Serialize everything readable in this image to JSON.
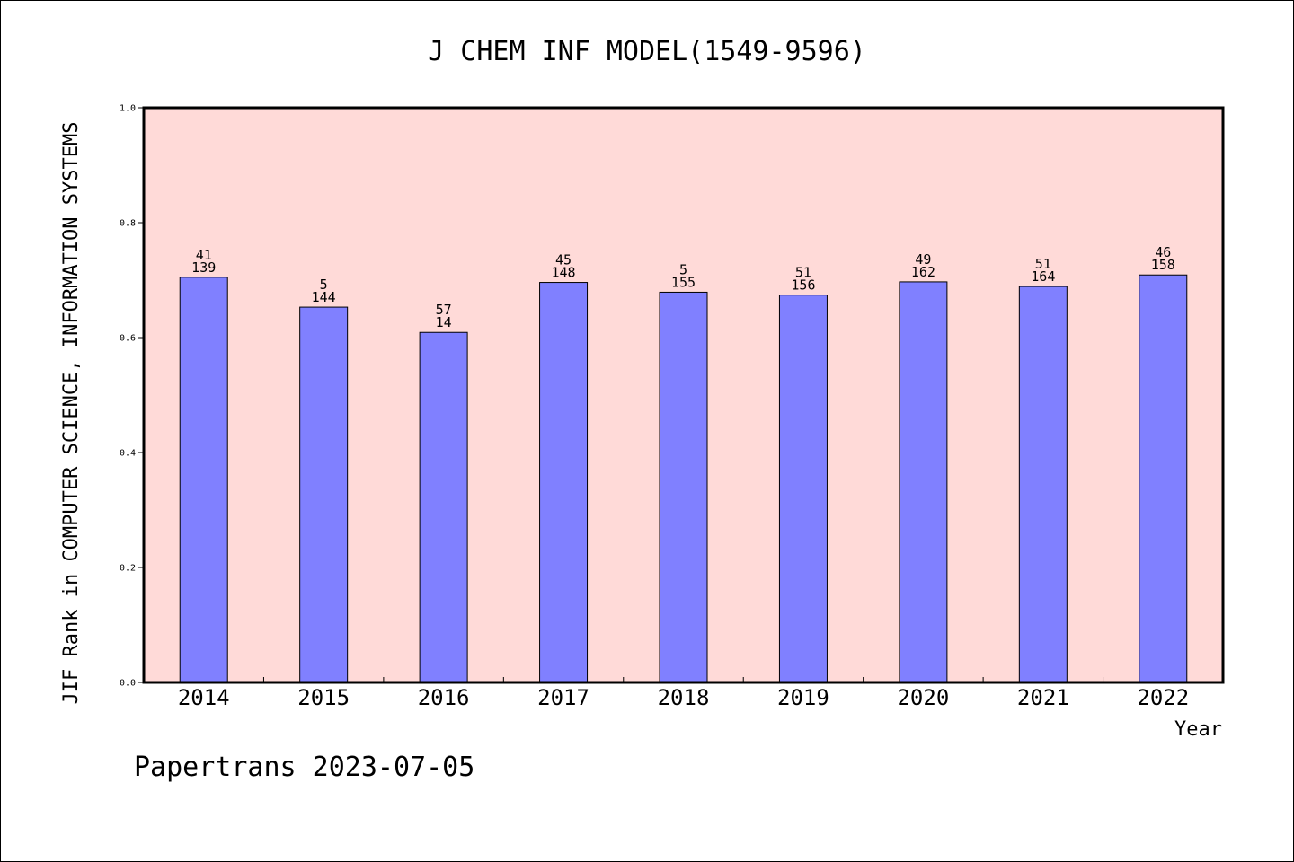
{
  "chart_data": {
    "type": "bar",
    "title": "J CHEM INF MODEL(1549-9596)",
    "xlabel": "Year",
    "ylabel": "JIF Rank in COMPUTER SCIENCE, INFORMATION SYSTEMS",
    "ylim": [
      0,
      1.0
    ],
    "yticks": [
      "0.0",
      "0.2",
      "0.4",
      "0.6",
      "0.8",
      "1.0"
    ],
    "categories": [
      "2014",
      "2015",
      "2016",
      "2017",
      "2018",
      "2019",
      "2020",
      "2021",
      "2022"
    ],
    "values": [
      0.705,
      0.653,
      0.609,
      0.696,
      0.679,
      0.674,
      0.697,
      0.689,
      0.709
    ],
    "labels_top": [
      "41",
      "5",
      "57",
      "45",
      "5",
      "51",
      "49",
      "51",
      "46"
    ],
    "labels_bottom": [
      "139",
      "144",
      "14",
      "148",
      "155",
      "156",
      "162",
      "164",
      "158"
    ],
    "grid": false,
    "plot_background": "#ffdad8",
    "bar_color": "#8080ff"
  },
  "footer": "Papertrans 2023-07-05"
}
